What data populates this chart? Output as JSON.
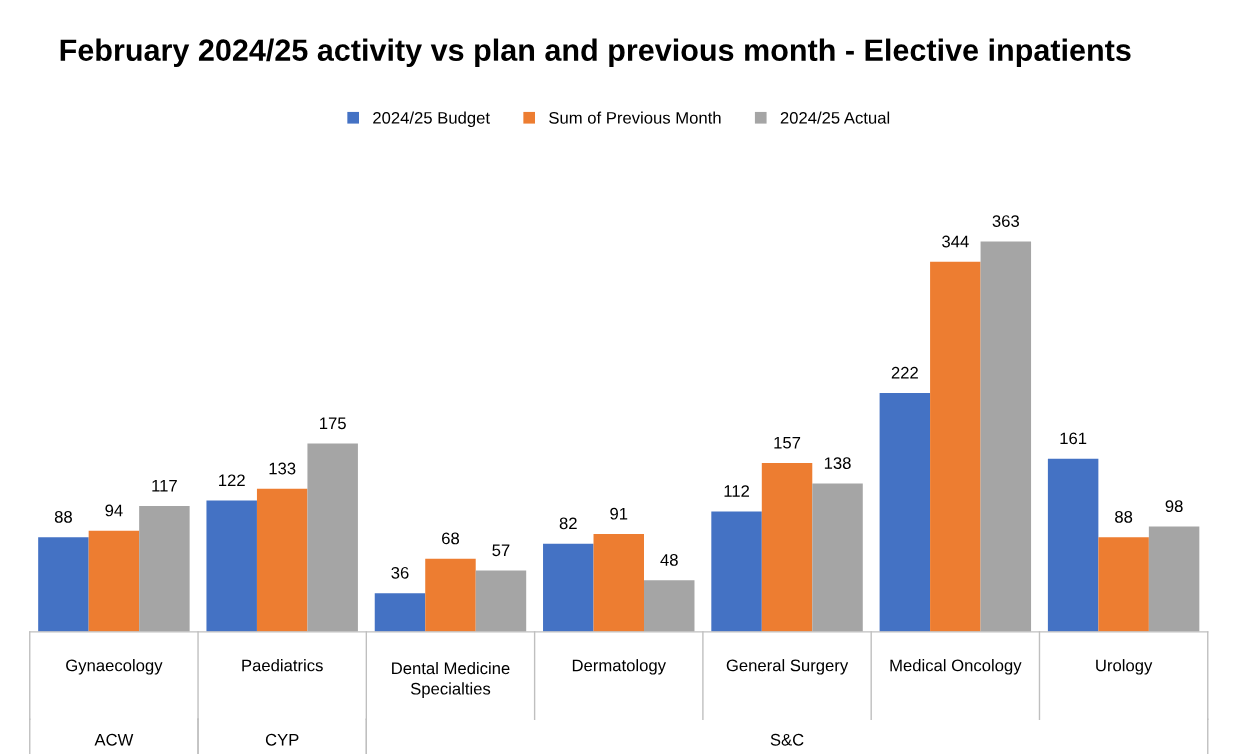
{
  "chart_data": {
    "type": "bar",
    "title": "February 2024/25 activity vs plan and previous month - Elective inpatients",
    "categories": [
      "Gynaecology",
      "Paediatrics",
      "Dental Medicine Specialties",
      "Dermatology",
      "General Surgery",
      "Medical Oncology",
      "Urology"
    ],
    "series": [
      {
        "name": "2024/25 Budget",
        "color": "#4472c4",
        "values": [
          88,
          122,
          36,
          82,
          112,
          222,
          161
        ]
      },
      {
        "name": "Sum of Previous Month",
        "color": "#ed7d31",
        "values": [
          94,
          133,
          68,
          91,
          157,
          344,
          88
        ]
      },
      {
        "name": "2024/25 Actual",
        "color": "#a5a5a5",
        "values": [
          117,
          175,
          57,
          48,
          138,
          363,
          98
        ]
      }
    ],
    "annotations": [
      "ACW",
      "CYP",
      "S&C"
    ],
    "data_labels": true,
    "legend": "top"
  }
}
